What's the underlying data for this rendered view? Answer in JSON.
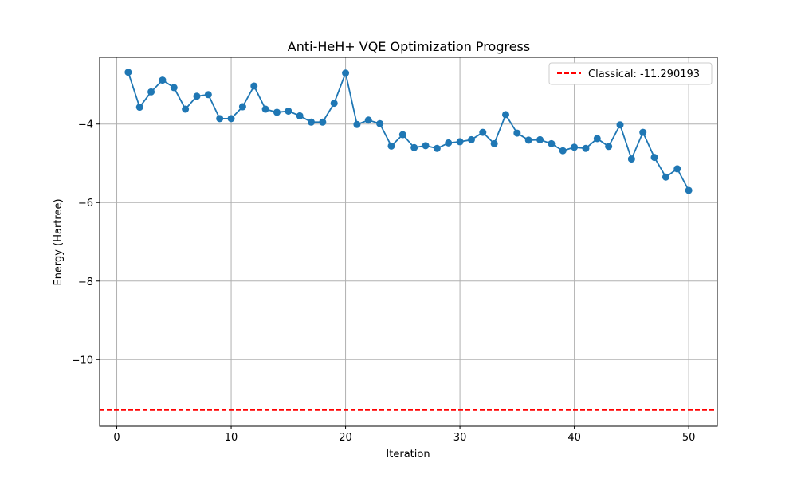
{
  "chart_data": {
    "type": "line",
    "title": "Anti-HeH+ VQE Optimization Progress",
    "xlabel": "Iteration",
    "ylabel": "Energy (Hartree)",
    "xlim": [
      -1.5,
      52.5
    ],
    "ylim": [
      -11.7,
      -2.3
    ],
    "grid": true,
    "legend_position": "top-right",
    "x_ticks": [
      0,
      10,
      20,
      30,
      40,
      50
    ],
    "x_tick_labels": [
      "0",
      "10",
      "20",
      "30",
      "40",
      "50"
    ],
    "y_ticks": [
      -10,
      -8,
      -6,
      -4
    ],
    "y_tick_labels": [
      "−10",
      "−8",
      "−6",
      "−4"
    ],
    "series": [
      {
        "color": "#1f77b4",
        "marker": "circle",
        "x": [
          1,
          2,
          3,
          4,
          5,
          6,
          7,
          8,
          9,
          10,
          11,
          12,
          13,
          14,
          15,
          16,
          17,
          18,
          19,
          20,
          21,
          22,
          23,
          24,
          25,
          26,
          27,
          28,
          29,
          30,
          31,
          32,
          33,
          34,
          35,
          36,
          37,
          38,
          39,
          40,
          41,
          42,
          43,
          44,
          45,
          46,
          47,
          48,
          49,
          50
        ],
        "y": [
          -2.68,
          -3.57,
          -3.18,
          -2.88,
          -3.07,
          -3.62,
          -3.29,
          -3.25,
          -3.86,
          -3.86,
          -3.56,
          -3.03,
          -3.62,
          -3.7,
          -3.67,
          -3.79,
          -3.95,
          -3.95,
          -3.47,
          -2.7,
          -4.01,
          -3.9,
          -3.99,
          -4.56,
          -4.27,
          -4.6,
          -4.55,
          -4.62,
          -4.48,
          -4.45,
          -4.4,
          -4.21,
          -4.5,
          -3.76,
          -4.23,
          -4.41,
          -4.4,
          -4.5,
          -4.68,
          -4.59,
          -4.62,
          -4.37,
          -4.57,
          -4.02,
          -4.89,
          -4.21,
          -4.85,
          -5.35,
          -5.14,
          -5.69
        ]
      }
    ],
    "reference_line": {
      "label": "Classical: -11.290193",
      "y": -11.290193,
      "color": "#ff0000",
      "style": "dashed"
    }
  }
}
